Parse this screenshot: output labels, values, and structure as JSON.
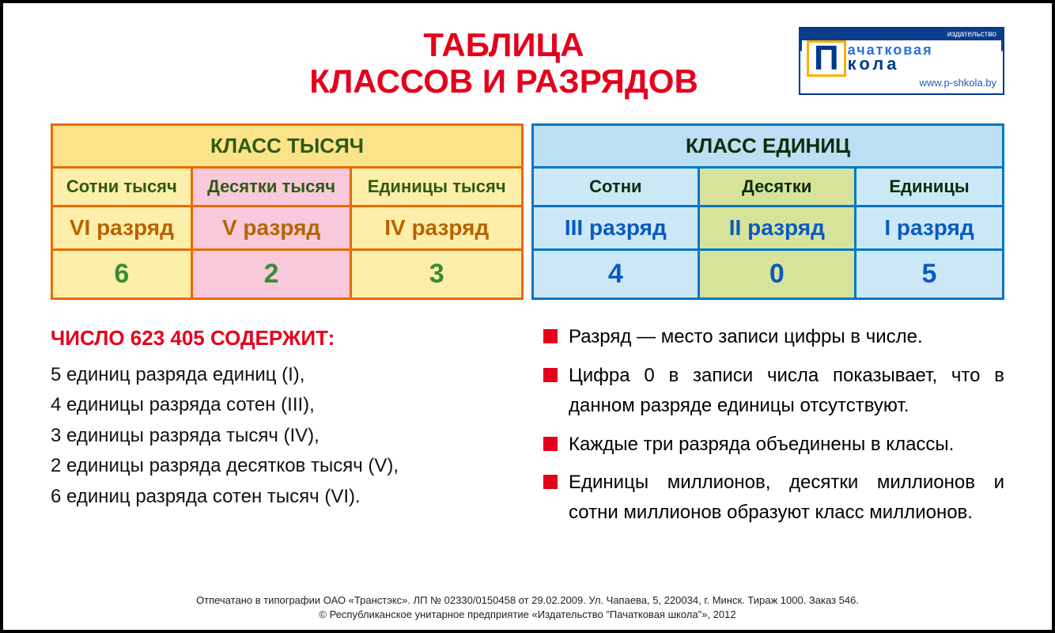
{
  "title": {
    "line1": "ТАБЛИЦА",
    "line2": "КЛАССОВ И РАЗРЯДОВ"
  },
  "logo": {
    "top": "издательство",
    "letter": "П",
    "word1": "ачатковая",
    "word2": "кола",
    "url": "www.p-shkola.by"
  },
  "table_left": {
    "header": "КЛАСС ТЫСЯЧ",
    "cols": [
      "Сотни тысяч",
      "Десятки тысяч",
      "Единицы тысяч"
    ],
    "ranks": [
      "VI разряд",
      "V разряд",
      "IV разряд"
    ],
    "digits": [
      "6",
      "2",
      "3"
    ],
    "border_color": "#e96a00",
    "bg_main": "#fdeeaa",
    "bg_accent": "#f7c9db",
    "header_bg": "#fbe38a"
  },
  "table_right": {
    "header": "КЛАСС ЕДИНИЦ",
    "cols": [
      "Сотни",
      "Десятки",
      "Единицы"
    ],
    "ranks": [
      "III разряд",
      "II разряд",
      "I разряд"
    ],
    "digits": [
      "4",
      "0",
      "5"
    ],
    "border_color": "#0077c8",
    "bg_main": "#cce8f7",
    "bg_accent": "#d7e39b",
    "header_bg": "#bcdff4"
  },
  "left_list": {
    "heading": "ЧИСЛО 623 405 СОДЕРЖИТ:",
    "items": [
      "5 единиц разряда единиц (I),",
      "4 единицы разряда сотен (III),",
      "3 единицы разряда тысяч (IV),",
      "2 единицы разряда десятков тысяч (V),",
      "6 единиц разряда сотен тысяч (VI)."
    ]
  },
  "right_list": {
    "items": [
      "Разряд — место записи цифры в числе.",
      "Цифра 0 в записи числа показывает, что в данном разряде единицы отсутствуют.",
      "Каждые три разряда объединены в классы.",
      "Единицы миллионов, десятки миллионов и сотни миллионов образуют класс миллионов."
    ]
  },
  "footer": {
    "line1": "Отпечатано в типографии ОАО «Транстэкс». ЛП № 02330/0150458 от 29.02.2009. Ул. Чапаева, 5, 220034, г. Минск. Тираж 1000. Заказ 546.",
    "line2": "© Республиканское унитарное предприятие «Издательство \"Пачатковая школа\"», 2012"
  }
}
